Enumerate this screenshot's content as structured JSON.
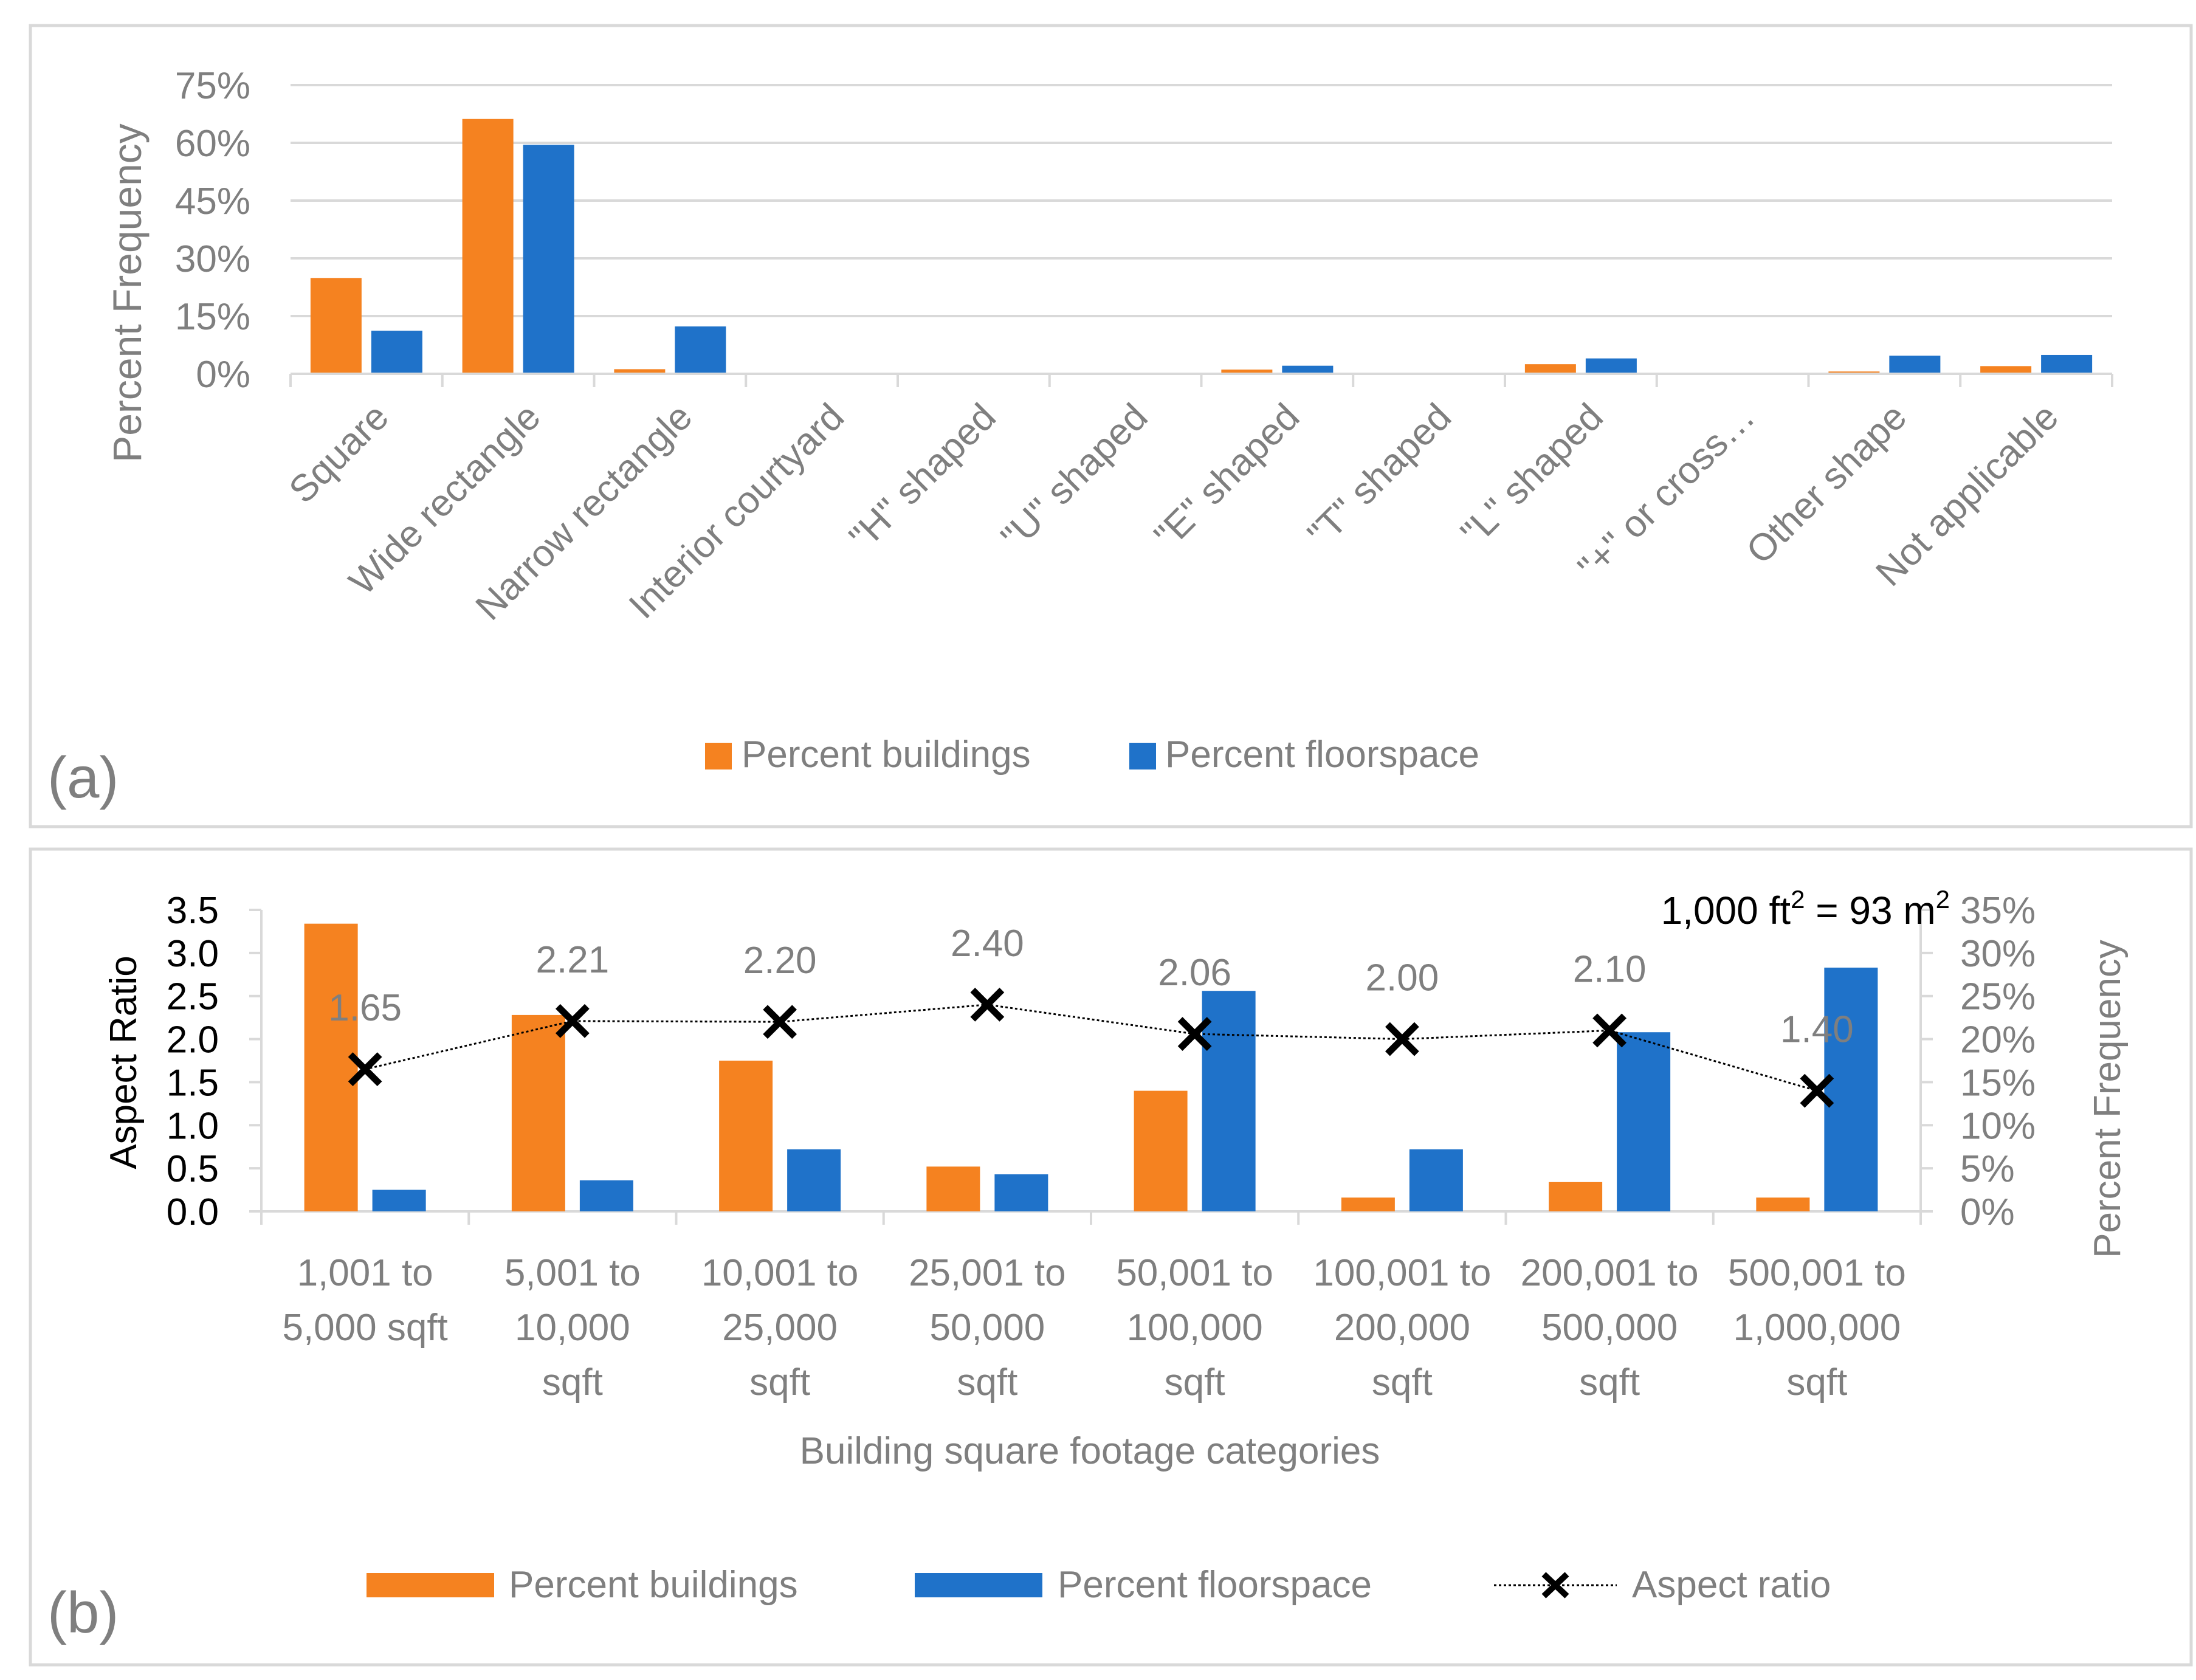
{
  "colors": {
    "buildings": "#F58220",
    "floorspace": "#1F72C9",
    "text": "#7f7f7f",
    "grid": "#d9d9d9",
    "line": "#000000"
  },
  "panel_a": {
    "label": "(a)",
    "legend": [
      "Percent buildings",
      "Percent floorspace"
    ]
  },
  "panel_b": {
    "label": "(b)",
    "note_prefix": "1,000 ft",
    "note_mid": " = 93 m",
    "note_sup": "2",
    "legend": [
      "Percent buildings",
      "Percent floorspace",
      "Aspect ratio"
    ]
  },
  "chart_data": [
    {
      "type": "bar",
      "ylabel": "Percent Frequency",
      "xlabel": "",
      "ylim": [
        0,
        75
      ],
      "yticks": [
        "0%",
        "15%",
        "30%",
        "45%",
        "60%",
        "75%"
      ],
      "categories": [
        "Square",
        "Wide rectangle",
        "Narrow rectangle",
        "Interior courtyard",
        "\"H\" shaped",
        "\"U\" shaped",
        "\"E\" shaped",
        "\"T\" shaped",
        "\"L\" shaped",
        "\"+\" or cross…",
        "Other shape",
        "Not applicable"
      ],
      "series": [
        {
          "name": "Percent buildings",
          "values": [
            24.9,
            66.2,
            1.2,
            0,
            0,
            0,
            1.1,
            0,
            2.5,
            0,
            0.6,
            2.0
          ]
        },
        {
          "name": "Percent floorspace",
          "values": [
            11.2,
            59.5,
            12.3,
            0,
            0,
            0,
            2.1,
            0,
            4.0,
            0,
            4.7,
            4.9
          ]
        }
      ]
    },
    {
      "type": "bar",
      "xlabel": "Building square footage categories",
      "ylabel": "Aspect Ratio",
      "y2label": "Percent Frequency",
      "ylim": [
        0,
        3.5
      ],
      "y2lim": [
        0,
        35
      ],
      "yticks": [
        "0.0",
        "0.5",
        "1.0",
        "1.5",
        "2.0",
        "2.5",
        "3.0",
        "3.5"
      ],
      "y2ticks": [
        "0%",
        "5%",
        "10%",
        "15%",
        "20%",
        "25%",
        "30%",
        "35%"
      ],
      "categories": [
        [
          "1,001 to",
          "5,000 sqft"
        ],
        [
          "5,001 to",
          "10,000",
          "sqft"
        ],
        [
          "10,001 to",
          "25,000",
          "sqft"
        ],
        [
          "25,001 to",
          "50,000",
          "sqft"
        ],
        [
          "50,001 to",
          "100,000",
          "sqft"
        ],
        [
          "100,001 to",
          "200,000",
          "sqft"
        ],
        [
          "200,001 to",
          "500,000",
          "sqft"
        ],
        [
          "500,001 to",
          "1,000,000",
          "sqft"
        ]
      ],
      "series": [
        {
          "name": "Percent buildings",
          "axis": "y2",
          "values": [
            33.4,
            22.8,
            17.5,
            5.2,
            14.0,
            1.6,
            3.4,
            1.6
          ]
        },
        {
          "name": "Percent floorspace",
          "axis": "y2",
          "values": [
            2.5,
            3.6,
            7.2,
            4.3,
            25.6,
            7.2,
            20.8,
            28.3
          ]
        },
        {
          "name": "Aspect ratio",
          "axis": "y",
          "type": "line",
          "values": [
            1.65,
            2.21,
            2.2,
            2.4,
            2.06,
            2.0,
            2.1,
            1.4
          ]
        }
      ],
      "data_labels": [
        "1.65",
        "2.21",
        "2.20",
        "2.40",
        "2.06",
        "2.00",
        "2.10",
        "1.40"
      ]
    }
  ]
}
